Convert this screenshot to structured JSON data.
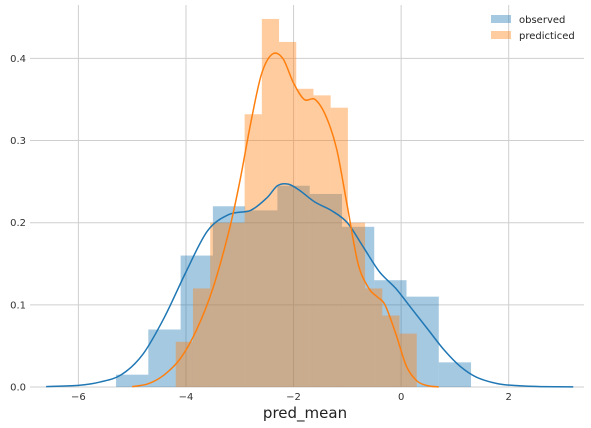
{
  "chart_data": {
    "type": "histogram-kde",
    "xlabel": "pred_mean",
    "ylabel": "",
    "xlim": [
      -6.9,
      3.4
    ],
    "ylim": [
      0,
      0.465
    ],
    "xticks": [
      -6,
      -4,
      -2,
      0,
      2
    ],
    "yticks": [
      0.0,
      0.1,
      0.2,
      0.3,
      0.4
    ],
    "grid": true,
    "legend_position": "top-right",
    "series": [
      {
        "name": "observed",
        "color": "#1f77b4",
        "bin_width": 0.6,
        "bins": [
          {
            "x0": -5.3,
            "x1": -4.7,
            "value": 0.015
          },
          {
            "x0": -4.7,
            "x1": -4.1,
            "value": 0.07
          },
          {
            "x0": -4.1,
            "x1": -3.5,
            "value": 0.16
          },
          {
            "x0": -3.5,
            "x1": -2.9,
            "value": 0.22
          },
          {
            "x0": -2.9,
            "x1": -2.3,
            "value": 0.215
          },
          {
            "x0": -2.3,
            "x1": -1.7,
            "value": 0.245
          },
          {
            "x0": -1.7,
            "x1": -1.1,
            "value": 0.235
          },
          {
            "x0": -1.1,
            "x1": -0.5,
            "value": 0.195
          },
          {
            "x0": -0.5,
            "x1": 0.1,
            "value": 0.13
          },
          {
            "x0": 0.1,
            "x1": 0.7,
            "value": 0.11
          },
          {
            "x0": 0.7,
            "x1": 1.3,
            "value": 0.03
          }
        ],
        "kde_x": [
          -6.6,
          -6.0,
          -5.6,
          -5.2,
          -4.8,
          -4.4,
          -4.0,
          -3.6,
          -3.2,
          -2.8,
          -2.5,
          -2.3,
          -2.1,
          -1.9,
          -1.6,
          -1.3,
          -1.0,
          -0.7,
          -0.4,
          -0.1,
          0.2,
          0.5,
          0.8,
          1.1,
          1.4,
          1.8,
          2.2,
          2.6,
          3.2
        ],
        "kde_y": [
          0.0005,
          0.002,
          0.006,
          0.015,
          0.04,
          0.085,
          0.14,
          0.19,
          0.21,
          0.215,
          0.23,
          0.245,
          0.247,
          0.24,
          0.225,
          0.215,
          0.2,
          0.17,
          0.14,
          0.12,
          0.095,
          0.07,
          0.045,
          0.025,
          0.012,
          0.004,
          0.0015,
          0.0005,
          0.0001
        ]
      },
      {
        "name": "predicticed",
        "color": "#ff7f0e",
        "bin_width": 0.32,
        "bins": [
          {
            "x0": -4.19,
            "x1": -3.87,
            "value": 0.055
          },
          {
            "x0": -3.87,
            "x1": -3.55,
            "value": 0.12
          },
          {
            "x0": -3.55,
            "x1": -3.23,
            "value": 0.2
          },
          {
            "x0": -3.23,
            "x1": -2.91,
            "value": 0.2
          },
          {
            "x0": -2.91,
            "x1": -2.59,
            "value": 0.332
          },
          {
            "x0": -2.59,
            "x1": -2.27,
            "value": 0.448
          },
          {
            "x0": -2.27,
            "x1": -1.95,
            "value": 0.42
          },
          {
            "x0": -1.95,
            "x1": -1.63,
            "value": 0.363
          },
          {
            "x0": -1.63,
            "x1": -1.31,
            "value": 0.355
          },
          {
            "x0": -1.31,
            "x1": -0.99,
            "value": 0.34
          },
          {
            "x0": -0.99,
            "x1": -0.67,
            "value": 0.2
          },
          {
            "x0": -0.67,
            "x1": -0.35,
            "value": 0.12
          },
          {
            "x0": -0.35,
            "x1": -0.03,
            "value": 0.087
          },
          {
            "x0": -0.03,
            "x1": 0.29,
            "value": 0.065
          }
        ],
        "kde_x": [
          -5.0,
          -4.7,
          -4.4,
          -4.1,
          -3.8,
          -3.5,
          -3.2,
          -3.0,
          -2.8,
          -2.6,
          -2.4,
          -2.2,
          -2.0,
          -1.8,
          -1.6,
          -1.4,
          -1.2,
          -1.0,
          -0.8,
          -0.6,
          -0.45,
          -0.3,
          -0.1,
          0.1,
          0.3,
          0.5,
          0.7
        ],
        "kde_y": [
          0.0005,
          0.004,
          0.015,
          0.035,
          0.07,
          0.12,
          0.19,
          0.25,
          0.32,
          0.38,
          0.405,
          0.4,
          0.37,
          0.35,
          0.35,
          0.33,
          0.29,
          0.22,
          0.15,
          0.12,
          0.11,
          0.1,
          0.065,
          0.025,
          0.007,
          0.0015,
          0.0002
        ]
      }
    ]
  }
}
